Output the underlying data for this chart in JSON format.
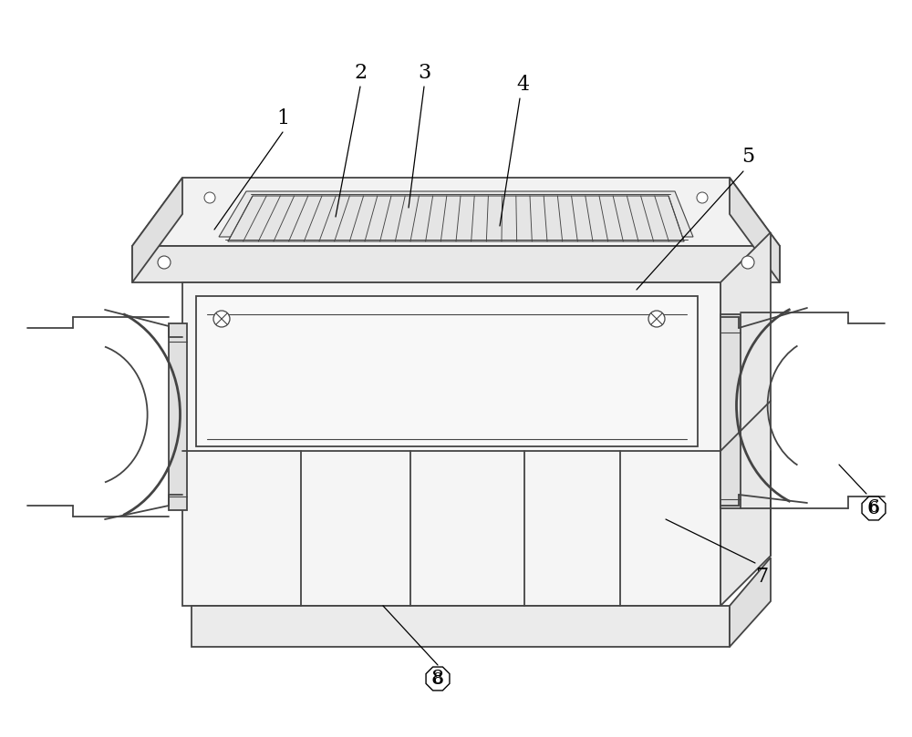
{
  "bg_color": "#ffffff",
  "lc": "#444444",
  "lc_light": "#888888",
  "fig_width": 10.0,
  "fig_height": 8.09,
  "dpi": 100
}
